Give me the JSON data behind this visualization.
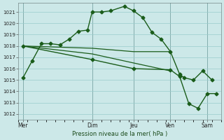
{
  "title": "Pression niveau de la mer( hPa )",
  "bg_color": "#cce8e8",
  "grid_color": "#99cccc",
  "line_color": "#1a5c1a",
  "marker_color": "#1a5c1a",
  "ylim": [
    1011.5,
    1021.8
  ],
  "yticks": [
    1012,
    1013,
    1014,
    1015,
    1016,
    1017,
    1018,
    1019,
    1020,
    1021
  ],
  "xlim": [
    0,
    22
  ],
  "day_positions": [
    0.5,
    8,
    12.5,
    16.5,
    20.5
  ],
  "day_labels": [
    "Mer",
    "Dim",
    "Jeu",
    "Ven",
    "Sam"
  ],
  "vline_positions": [
    0.5,
    8,
    12.5,
    16.5,
    20.5
  ],
  "series": [
    {
      "x": [
        0.5,
        1.5,
        2.5,
        3.5,
        4.5,
        5.5,
        6.5,
        7.5,
        8.0,
        9.0,
        10.0,
        11.5,
        12.5,
        13.5,
        14.5,
        15.5,
        16.5,
        17.5,
        18.0,
        19.0,
        20.0,
        21.0
      ],
      "y": [
        1015.2,
        1016.7,
        1018.2,
        1018.2,
        1018.1,
        1018.6,
        1019.3,
        1019.4,
        1021.0,
        1021.0,
        1021.1,
        1021.5,
        1021.1,
        1020.5,
        1019.2,
        1018.6,
        1017.5,
        1015.5,
        1015.2,
        1015.0,
        1015.8,
        1015.0
      ],
      "marker": "D",
      "markersize": 2.5,
      "linewidth": 1.0
    },
    {
      "x": [
        0.5,
        8.0,
        12.5,
        16.5
      ],
      "y": [
        1018.0,
        1017.8,
        1017.5,
        1017.5
      ],
      "marker": null,
      "markersize": 0,
      "linewidth": 0.9
    },
    {
      "x": [
        0.5,
        8.0,
        12.5,
        16.5
      ],
      "y": [
        1018.0,
        1017.3,
        1016.5,
        1015.8
      ],
      "marker": null,
      "markersize": 0,
      "linewidth": 0.9
    },
    {
      "x": [
        0.5,
        8.0,
        12.5,
        16.5,
        17.5,
        18.5,
        19.5,
        20.5,
        21.5
      ],
      "y": [
        1018.0,
        1016.8,
        1016.0,
        1015.9,
        1015.3,
        1012.9,
        1012.5,
        1013.8,
        1013.8
      ],
      "marker": "D",
      "markersize": 2.5,
      "linewidth": 1.0
    }
  ]
}
